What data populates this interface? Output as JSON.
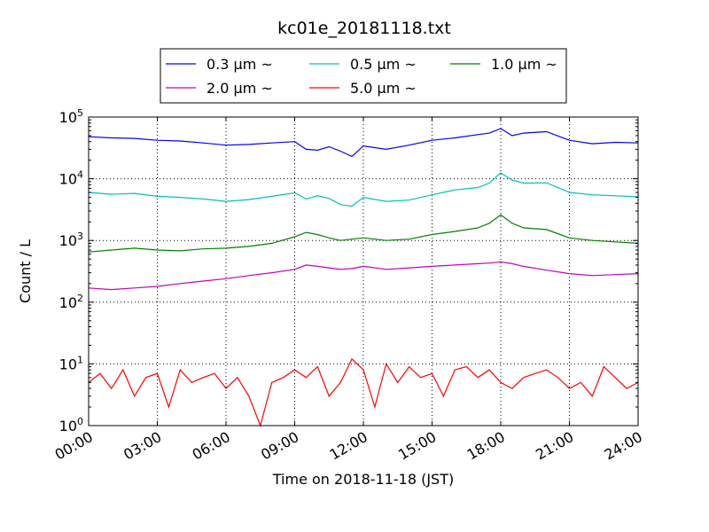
{
  "chart_data": {
    "type": "line",
    "title": "kc01e_20181118.txt",
    "xlabel": "Time on 2018-11-18 (JST)",
    "ylabel": "Count / L",
    "yscale": "log",
    "ylim": [
      1,
      100000
    ],
    "xlim": [
      "00:00",
      "24:00"
    ],
    "grid": true,
    "legend_position": "top-center",
    "x_tick_labels": [
      "00:00",
      "03:00",
      "06:00",
      "09:00",
      "12:00",
      "15:00",
      "18:00",
      "21:00",
      "24:00"
    ],
    "y_tick_labels": [
      {
        "base": "10",
        "exp": "0"
      },
      {
        "base": "10",
        "exp": "1"
      },
      {
        "base": "10",
        "exp": "2"
      },
      {
        "base": "10",
        "exp": "3"
      },
      {
        "base": "10",
        "exp": "4"
      },
      {
        "base": "10",
        "exp": "5"
      }
    ],
    "series": [
      {
        "name": "0.3 μm ~",
        "color": "#0000ff",
        "x": [
          "00:00",
          "01:00",
          "02:00",
          "03:00",
          "04:00",
          "05:00",
          "06:00",
          "07:00",
          "08:00",
          "09:00",
          "09:30",
          "10:00",
          "10:30",
          "11:00",
          "11:30",
          "12:00",
          "13:00",
          "14:00",
          "15:00",
          "16:00",
          "17:00",
          "17:30",
          "18:00",
          "18:30",
          "19:00",
          "20:00",
          "21:00",
          "22:00",
          "23:00",
          "24:00"
        ],
        "y": [
          48000,
          46000,
          45000,
          42000,
          41000,
          38000,
          35000,
          36000,
          38000,
          40000,
          30000,
          29000,
          33000,
          28000,
          23000,
          34000,
          30000,
          35000,
          42000,
          46000,
          52000,
          55000,
          65000,
          50000,
          55000,
          58000,
          42000,
          37000,
          39000,
          38000
        ]
      },
      {
        "name": "0.5 μm ~",
        "color": "#00bfbf",
        "x": [
          "00:00",
          "01:00",
          "02:00",
          "03:00",
          "04:00",
          "05:00",
          "06:00",
          "07:00",
          "08:00",
          "09:00",
          "09:30",
          "10:00",
          "10:30",
          "11:00",
          "11:30",
          "12:00",
          "13:00",
          "14:00",
          "15:00",
          "16:00",
          "17:00",
          "17:30",
          "18:00",
          "18:30",
          "19:00",
          "20:00",
          "21:00",
          "22:00",
          "23:00",
          "24:00"
        ],
        "y": [
          6000,
          5600,
          5800,
          5200,
          5000,
          4700,
          4300,
          4600,
          5200,
          5900,
          4700,
          5300,
          4800,
          3800,
          3600,
          5000,
          4300,
          4500,
          5500,
          6600,
          7200,
          8500,
          12500,
          9500,
          8500,
          8600,
          6000,
          5500,
          5300,
          5100
        ]
      },
      {
        "name": "1.0 μm ~",
        "color": "#008000",
        "x": [
          "00:00",
          "01:00",
          "02:00",
          "03:00",
          "04:00",
          "05:00",
          "06:00",
          "07:00",
          "08:00",
          "09:00",
          "09:30",
          "10:00",
          "10:30",
          "11:00",
          "11:30",
          "12:00",
          "13:00",
          "14:00",
          "15:00",
          "16:00",
          "17:00",
          "17:30",
          "18:00",
          "18:30",
          "19:00",
          "20:00",
          "21:00",
          "22:00",
          "23:00",
          "24:00"
        ],
        "y": [
          650,
          700,
          750,
          700,
          680,
          730,
          750,
          800,
          900,
          1150,
          1350,
          1250,
          1100,
          1000,
          1050,
          1100,
          1000,
          1050,
          1250,
          1400,
          1600,
          1900,
          2600,
          1900,
          1600,
          1500,
          1100,
          1000,
          950,
          900
        ]
      },
      {
        "name": "2.0 μm ~",
        "color": "#bf00bf",
        "x": [
          "00:00",
          "01:00",
          "02:00",
          "03:00",
          "04:00",
          "05:00",
          "06:00",
          "07:00",
          "08:00",
          "09:00",
          "09:30",
          "10:00",
          "10:30",
          "11:00",
          "11:30",
          "12:00",
          "13:00",
          "14:00",
          "15:00",
          "16:00",
          "17:00",
          "17:30",
          "18:00",
          "18:30",
          "19:00",
          "20:00",
          "21:00",
          "22:00",
          "23:00",
          "24:00"
        ],
        "y": [
          170,
          160,
          170,
          180,
          200,
          220,
          240,
          270,
          300,
          340,
          400,
          380,
          360,
          340,
          350,
          380,
          340,
          360,
          380,
          400,
          420,
          430,
          450,
          420,
          380,
          330,
          290,
          270,
          280,
          290
        ]
      },
      {
        "name": "5.0 μm ~",
        "color": "#ff0000",
        "x": [
          "00:00",
          "00:30",
          "01:00",
          "01:30",
          "02:00",
          "02:30",
          "03:00",
          "03:30",
          "04:00",
          "04:30",
          "05:00",
          "05:30",
          "06:00",
          "06:30",
          "07:00",
          "07:30",
          "08:00",
          "08:30",
          "09:00",
          "09:30",
          "10:00",
          "10:30",
          "11:00",
          "11:30",
          "12:00",
          "12:30",
          "13:00",
          "13:30",
          "14:00",
          "14:30",
          "15:00",
          "15:30",
          "16:00",
          "16:30",
          "17:00",
          "17:30",
          "18:00",
          "18:30",
          "19:00",
          "19:30",
          "20:00",
          "20:30",
          "21:00",
          "21:30",
          "22:00",
          "22:30",
          "23:00",
          "23:30",
          "24:00"
        ],
        "y": [
          5,
          7,
          4,
          8,
          3,
          6,
          7,
          2,
          8,
          5,
          6,
          7,
          4,
          6,
          3,
          1,
          5,
          6,
          8,
          6,
          9,
          3,
          5,
          12,
          8,
          2,
          10,
          5,
          9,
          6,
          7,
          3,
          8,
          9,
          6,
          8,
          5,
          4,
          6,
          7,
          8,
          6,
          4,
          5,
          3,
          9,
          6,
          4,
          5
        ]
      }
    ]
  }
}
